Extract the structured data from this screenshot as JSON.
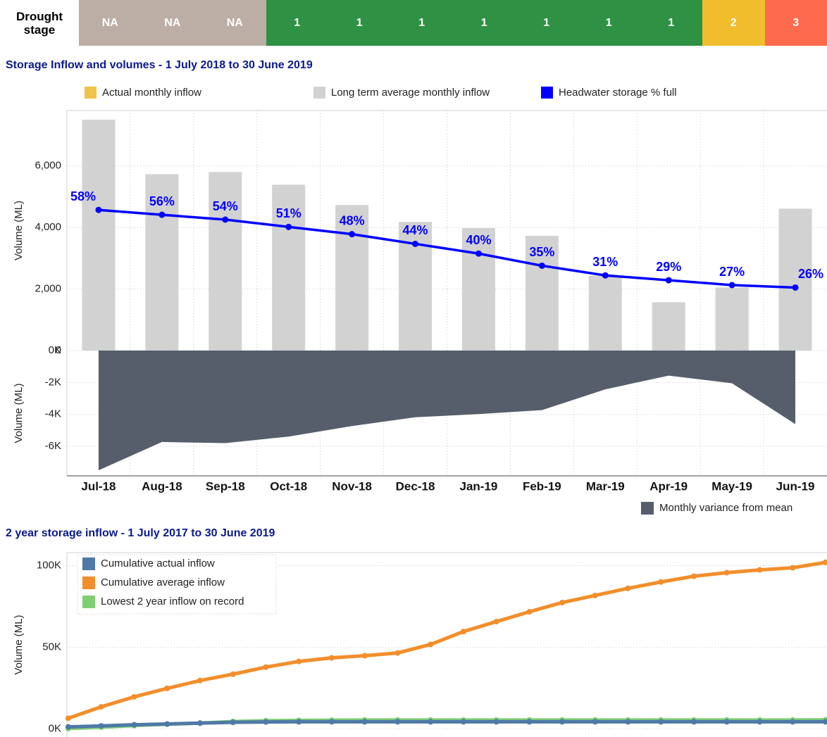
{
  "drought_stage": {
    "label": "Drought stage",
    "stages": [
      {
        "text": "NA",
        "color": "#bcaea5"
      },
      {
        "text": "NA",
        "color": "#bcaea5"
      },
      {
        "text": "NA",
        "color": "#bcaea5"
      },
      {
        "text": "1",
        "color": "#2e9144"
      },
      {
        "text": "1",
        "color": "#2e9144"
      },
      {
        "text": "1",
        "color": "#2e9144"
      },
      {
        "text": "1",
        "color": "#2e9144"
      },
      {
        "text": "1",
        "color": "#2e9144"
      },
      {
        "text": "1",
        "color": "#2e9144"
      },
      {
        "text": "1",
        "color": "#2e9144"
      },
      {
        "text": "2",
        "color": "#f0bd2c"
      },
      {
        "text": "3",
        "color": "#fd6a4e"
      }
    ]
  },
  "chart_data": [
    {
      "type": "bar_line",
      "title": "Storage Inflow and volumes - 1 July 2018 to 30 June 2019",
      "categories": [
        "Jul-18",
        "Aug-18",
        "Sep-18",
        "Oct-18",
        "Nov-18",
        "Dec-18",
        "Jan-19",
        "Feb-19",
        "Mar-19",
        "Apr-19",
        "May-19",
        "Jun-19"
      ],
      "series": [
        {
          "name": "Actual monthly inflow",
          "color": "#efc44a",
          "type": "bar",
          "values": [
            0,
            0,
            0,
            0,
            0,
            0,
            0,
            0,
            0,
            0,
            0,
            0
          ]
        },
        {
          "name": "Long term average monthly inflow",
          "color": "#d2d2d2",
          "type": "bar",
          "values": [
            7500,
            5730,
            5800,
            5390,
            4730,
            4180,
            3980,
            3730,
            2430,
            1570,
            2050,
            4610
          ]
        },
        {
          "name": "Headwater storage % full",
          "color": "#0000ff",
          "type": "line",
          "axis": "y2",
          "values": [
            58,
            56,
            54,
            51,
            48,
            44,
            40,
            35,
            31,
            29,
            27,
            26
          ],
          "value_labels": [
            "58%",
            "56%",
            "54%",
            "51%",
            "48%",
            "44%",
            "40%",
            "35%",
            "31%",
            "29%",
            "27%",
            "26%"
          ]
        }
      ],
      "ylabel": "Volume (ML)",
      "ylim": [
        0,
        7800
      ],
      "yticks": [
        0,
        {
          "value": 2000,
          "label": "2,000"
        },
        {
          "value": 4000,
          "label": "4,000"
        },
        {
          "value": 6000,
          "label": "6,000"
        }
      ],
      "y2lim": [
        0,
        99
      ],
      "grid": true
    },
    {
      "type": "area",
      "ylabel": "Volume (ML)",
      "series": [
        {
          "name": "Monthly variance from mean",
          "color": "#565e6b",
          "values": [
            -7500,
            -5730,
            -5800,
            -5390,
            -4730,
            -4180,
            -3980,
            -3730,
            -2430,
            -1570,
            -2050,
            -4610
          ]
        }
      ],
      "ylim": [
        -7850,
        0
      ],
      "yticks": [
        {
          "value": 0,
          "label": "0K"
        },
        {
          "value": -2000,
          "label": "-2K"
        },
        {
          "value": -4000,
          "label": "-4K"
        },
        {
          "value": -6000,
          "label": "-6K"
        }
      ],
      "grid": true,
      "legend": "bottom-right"
    },
    {
      "type": "line",
      "title": "2 year storage inflow - 1 July 2017 to 30 June 2019",
      "ylabel": "Volume (ML)",
      "categories": [
        null,
        null,
        null,
        null,
        null,
        null,
        null,
        null,
        null,
        null,
        null,
        null,
        null,
        null,
        null,
        null,
        null,
        null,
        null,
        null,
        null,
        null,
        null,
        null
      ],
      "series": [
        {
          "name": "Cumulative actual inflow",
          "color": "#4e79a7",
          "values": [
            1200,
            1800,
            2500,
            3000,
            3500,
            4000,
            4200,
            4300,
            4300,
            4300,
            4300,
            4300,
            4300,
            4300,
            4300,
            4300,
            4300,
            4300,
            4300,
            4300,
            4300,
            4300,
            4300,
            4300
          ]
        },
        {
          "name": "Cumulative average inflow",
          "color": "#f28e2b",
          "values": [
            6500,
            13500,
            19600,
            24800,
            29600,
            33500,
            37800,
            41300,
            43500,
            44800,
            46500,
            51700,
            59600,
            65700,
            71700,
            77400,
            81700,
            86100,
            90000,
            93500,
            95700,
            97400,
            98700,
            102000
          ]
        },
        {
          "name": "Lowest 2 year inflow on record",
          "color": "#7fcf72",
          "values": [
            200,
            1000,
            2000,
            2800,
            3500,
            4500,
            5000,
            5200,
            5300,
            5400,
            5400,
            5400,
            5400,
            5400,
            5400,
            5400,
            5400,
            5400,
            5400,
            5400,
            5400,
            5400,
            5400,
            5500
          ]
        }
      ],
      "ylim": [
        -5000,
        108000
      ],
      "yticks": [
        {
          "value": 0,
          "label": "0K"
        },
        {
          "value": 50000,
          "label": "50K"
        },
        {
          "value": 100000,
          "label": "100K"
        }
      ],
      "grid": true,
      "legend": "top-left"
    }
  ]
}
